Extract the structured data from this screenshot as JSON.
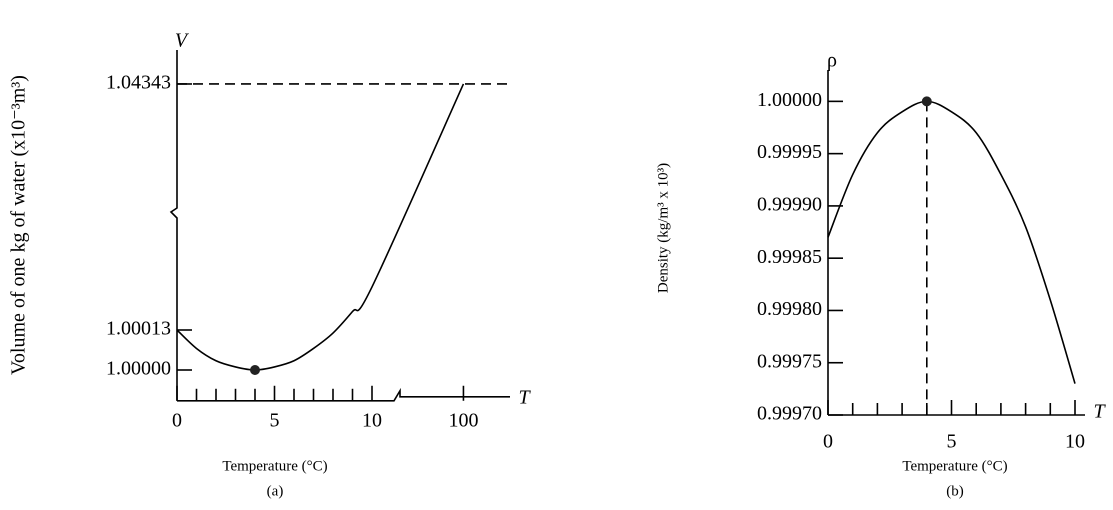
{
  "chart_data": [
    {
      "type": "line",
      "panel_label": "(a)",
      "x_label": "Temperature (°C)",
      "y_label": "Volume of one kg of water (x10⁻³m³)",
      "x_axis_name": "T",
      "y_axis_name": "V",
      "x": [
        0,
        1,
        2,
        3,
        4,
        5,
        6,
        7,
        8,
        9,
        10,
        100
      ],
      "series": [
        {
          "color": "#000000",
          "values": [
            1.00013,
            1.00007,
            1.00003,
            1.00001,
            1.0,
            1.00001,
            1.00003,
            1.00007,
            1.00012,
            1.00019,
            1.00027,
            1.04343
          ]
        }
      ],
      "xlim": [
        0,
        165
      ],
      "ylim": [
        0.9999,
        1.055
      ],
      "xticks": [
        0,
        5,
        10,
        100
      ],
      "xminorticks": [
        1,
        2,
        3,
        4,
        6,
        7,
        8,
        9
      ],
      "yticks": [
        {
          "value": 1.0,
          "label": "1.00000"
        },
        1.00013,
        1.04343
      ],
      "axis_break": true,
      "highlight_point": {
        "x": 4,
        "y": 1.0
      },
      "hline": 1.04343,
      "grid": false
    },
    {
      "type": "line",
      "panel_label": "(b)",
      "x_label": "Temperature (°C)",
      "y_label": "Density (kg/m³ x 10³)",
      "x_axis_name": "T",
      "y_axis_name": "ρ",
      "x": [
        0,
        1,
        2,
        3,
        4,
        5,
        6,
        7,
        8,
        9,
        10
      ],
      "series": [
        {
          "color": "#000000",
          "values": [
            0.99987,
            0.99993,
            0.99997,
            0.99999,
            1.0,
            0.99999,
            0.99997,
            0.99993,
            0.99988,
            0.99981,
            0.99973
          ]
        }
      ],
      "xlim": [
        0,
        10
      ],
      "ylim": [
        0.9997,
        1.00003
      ],
      "xticks": [
        0,
        5,
        10
      ],
      "xminorticks": [
        1,
        2,
        3,
        4,
        6,
        7,
        8,
        9
      ],
      "yticks": [
        {
          "value": 0.9997,
          "label": "0.99970"
        },
        0.99975,
        {
          "value": 0.9998,
          "label": "0.99980"
        },
        0.99985,
        {
          "value": 0.9999,
          "label": "0.99990"
        },
        0.99995,
        {
          "value": 1.0,
          "label": "1.00000"
        }
      ],
      "axis_break": false,
      "highlight_point": {
        "x": 4,
        "y": 1.0
      },
      "vline": 4,
      "grid": false
    }
  ]
}
